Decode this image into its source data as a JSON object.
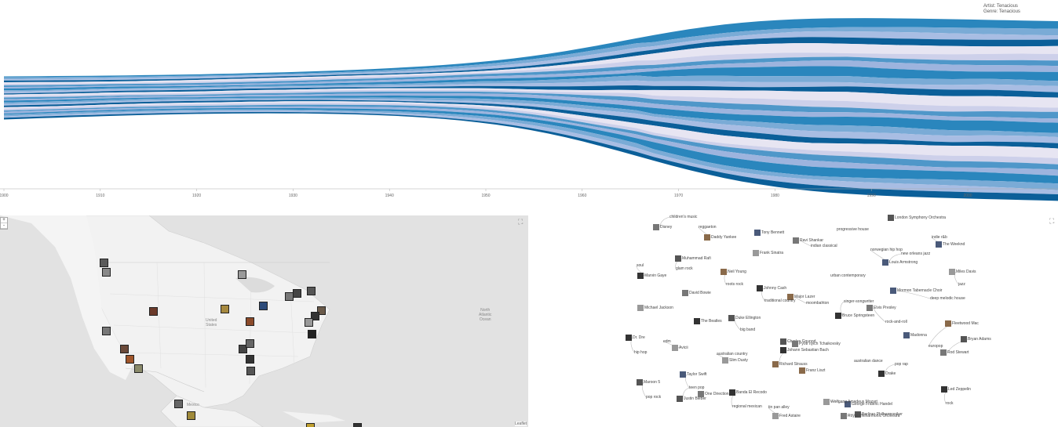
{
  "stream": {
    "legend": [
      "Artist: Tenacious",
      "Genre: Tenacious"
    ],
    "x_ticks": [
      "1900",
      "1910",
      "1920",
      "1930",
      "1940",
      "1950",
      "1960",
      "1970",
      "1980",
      "1990",
      "2000"
    ],
    "palette": [
      "#2a86bd",
      "#7aabd6",
      "#a8bde3",
      "#0b5f99",
      "#e7e5f2",
      "#cdd0ea",
      "#4f97c9",
      "#9db4de"
    ]
  },
  "map": {
    "zoom_in": "+",
    "zoom_out": "-",
    "country_label": "United\nStates",
    "mexico_label": "Mexico",
    "ocean_label": "North\nAtlantic\nOcean",
    "attribution": "Leaflet"
  },
  "graph": {
    "nodes": [
      "children's music",
      "Disney",
      "reggaeton",
      "Daddy Yankee",
      "Tony Bennett",
      "progressive house",
      "London Symphony Orchestra",
      "Ravi Shankar",
      "indian classical",
      "indie r&b",
      "The Weeknd",
      "Frank Sinatra",
      "Muhammad Rafi",
      "glam rock",
      "norwegian hip hop",
      "new orleans jazz",
      "Louis Armstrong",
      "Miles Davis",
      "jazz",
      "soul",
      "Marvin Gaye",
      "Neil Young",
      "roots rock",
      "Michael Jackson",
      "urban contemporary",
      "David Bowie",
      "Johnny Cash",
      "Major Lazer",
      "moombahton",
      "traditional country",
      "singer-songwriter",
      "Elvis Presley",
      "Bruce Springsteen",
      "rock-and-roll",
      "Mormon Tabernacle Choir",
      "deep melodic house",
      "Duke Ellington",
      "big band",
      "The Beatles",
      "Fleetwood Mac",
      "Madonna",
      "europop",
      "Bryan Adams",
      "Rod Stewart",
      "Dr. Dre",
      "hip hop",
      "edm",
      "Avicii",
      "Charles Gounod",
      "Pyotr Ilyich Tchaikovsky",
      "Johann Sebastian Bach",
      "Richard Strauss",
      "australian country",
      "Slim Dusty",
      "australian dance",
      "pop rap",
      "Drake",
      "Franz Liszt",
      "Taylor Swift",
      "teen pop",
      "Justin Bieber",
      "One Direction",
      "Banda El Recodo",
      "regional mexican",
      "tin pan alley",
      "Fred Astaire",
      "Maroon 5",
      "pop rock",
      "Led Zeppelin",
      "rock",
      "George Frideric Handel",
      "Wolfgang Amadeus Mozart",
      "Berliner Philharmoniker",
      "Royal Philharmonic Orchestra"
    ]
  }
}
